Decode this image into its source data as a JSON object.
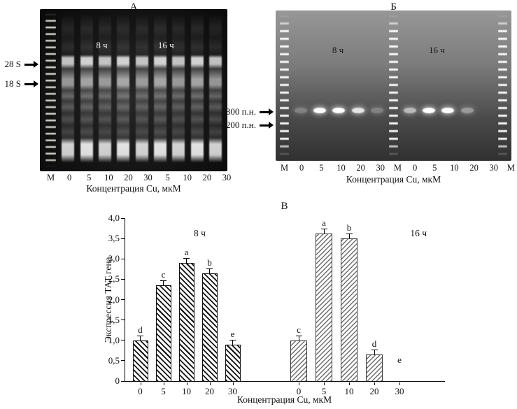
{
  "panel_a": {
    "title": "А",
    "group_labels": [
      "8 ч",
      "16 ч"
    ],
    "markers": [
      {
        "label": "28 S"
      },
      {
        "label": "18 S"
      }
    ],
    "lane_labels": [
      "М",
      "0",
      "5",
      "10",
      "20",
      "30",
      "5",
      "10",
      "20",
      "30"
    ],
    "caption": "Концентрация Cu, мкМ"
  },
  "panel_b": {
    "title": "Б",
    "group_labels": [
      "8 ч",
      "16 ч"
    ],
    "markers": [
      {
        "label": "300 п.н."
      },
      {
        "label": "200 п.н."
      }
    ],
    "lane_labels": [
      "М",
      "0",
      "5",
      "10",
      "20",
      "30",
      "М",
      "0",
      "5",
      "10",
      "20",
      "30",
      "М"
    ],
    "caption": "Концентрация Cu, мкМ"
  },
  "panel_c": {
    "title": "В",
    "caption": "Концентрация Cu, мкМ"
  },
  "chart_data": {
    "type": "bar",
    "title": "В",
    "ylabel": "Экспрессия ТАТ гена",
    "xlabel": "Концентрация Cu, мкМ",
    "ylim": [
      0,
      4.0
    ],
    "yticks": [
      "0",
      "0,5",
      "1,0",
      "1,5",
      "2,0",
      "2,5",
      "3,0",
      "3,5",
      "4,0"
    ],
    "grid": false,
    "groups": [
      {
        "name": "8 ч",
        "categories": [
          "0",
          "5",
          "10",
          "20",
          "30"
        ],
        "values": [
          1.0,
          2.35,
          2.9,
          2.65,
          0.9
        ],
        "errors": [
          0.05,
          0.06,
          0.07,
          0.06,
          0.05
        ],
        "letters": [
          "d",
          "c",
          "a",
          "b",
          "e"
        ]
      },
      {
        "name": "16 ч",
        "categories": [
          "0",
          "5",
          "10",
          "20",
          "30"
        ],
        "values": [
          1.0,
          3.65,
          3.5,
          0.65,
          0
        ],
        "errors": [
          0.05,
          0.07,
          0.07,
          0.04,
          0
        ],
        "letters": [
          "c",
          "a",
          "b",
          "d",
          "e"
        ]
      }
    ]
  }
}
